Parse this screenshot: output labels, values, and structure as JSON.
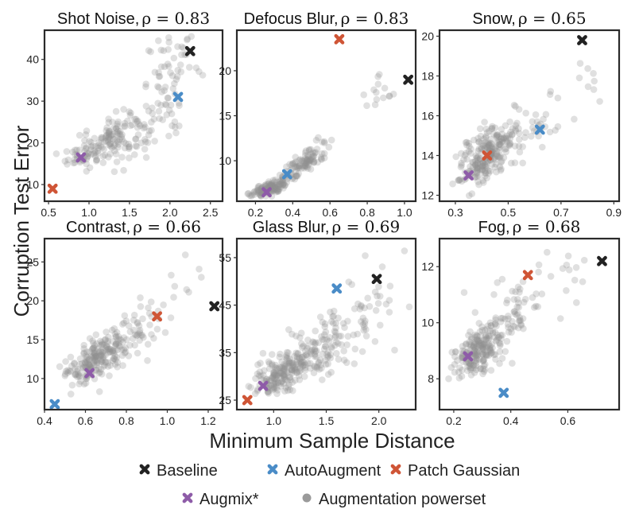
{
  "figure": {
    "xlabel": "Minimum Sample Distance",
    "ylabel": "Corruption Test Error"
  },
  "colors": {
    "baseline": "#222222",
    "autoaugment": "#4a8cc7",
    "patch_gaussian": "#cf5536",
    "augmix": "#8e5ca8",
    "powerset": "#8f8f8f"
  },
  "legend": [
    {
      "key": "baseline",
      "label": "Baseline",
      "marker": "cross"
    },
    {
      "key": "autoaugment",
      "label": "AutoAugment",
      "marker": "cross"
    },
    {
      "key": "patch_gaussian",
      "label": "Patch Gaussian",
      "marker": "cross"
    },
    {
      "key": "augmix",
      "label": "Augmix*",
      "marker": "cross"
    },
    {
      "key": "powerset",
      "label": "Augmentation powerset",
      "marker": "dot"
    }
  ],
  "chart_data": [
    {
      "type": "scatter",
      "title": "Shot Noise,",
      "rho": "ρ = 0.83",
      "xlim": [
        0.45,
        2.65
      ],
      "ylim": [
        6,
        47
      ],
      "xticks": [
        0.5,
        1.0,
        1.5,
        2.0,
        2.5
      ],
      "xtick_labels": [
        "0.5",
        "1.0",
        "1.5",
        "2.0",
        "2.5"
      ],
      "yticks": [
        10,
        20,
        30,
        40
      ],
      "ytick_labels": [
        "10",
        "20",
        "30",
        "40"
      ],
      "powerset_cluster": [
        {
          "cx": 1.3,
          "cy": 21,
          "sx": 0.28,
          "sy": 3.5,
          "n": 160,
          "corr": 0.6
        },
        {
          "cx": 2.05,
          "cy": 36,
          "sx": 0.17,
          "sy": 5.5,
          "n": 65,
          "corr": 0.2
        },
        {
          "cx": 0.95,
          "cy": 17,
          "sx": 0.12,
          "sy": 1.8,
          "n": 25,
          "corr": 0.3
        }
      ],
      "points": {
        "baseline": [
          2.25,
          42
        ],
        "autoaugment": [
          2.1,
          31
        ],
        "patch_gaussian": [
          0.55,
          9
        ],
        "augmix": [
          0.9,
          16.5
        ]
      }
    },
    {
      "type": "scatter",
      "title": "Defocus Blur,",
      "rho": "ρ = 0.83",
      "xlim": [
        0.1,
        1.06
      ],
      "ylim": [
        5.5,
        24.5
      ],
      "xticks": [
        0.2,
        0.4,
        0.6,
        0.8,
        1.0
      ],
      "xtick_labels": [
        "0.2",
        "0.4",
        "0.6",
        "0.8",
        "1.0"
      ],
      "yticks": [
        10,
        15,
        20
      ],
      "ytick_labels": [
        "10",
        "15",
        "20"
      ],
      "powerset_cluster": [
        {
          "cx": 0.27,
          "cy": 6.9,
          "sx": 0.05,
          "sy": 0.45,
          "n": 130,
          "corr": 0.6
        },
        {
          "cx": 0.45,
          "cy": 9.6,
          "sx": 0.07,
          "sy": 1.2,
          "n": 110,
          "corr": 0.85
        },
        {
          "cx": 0.85,
          "cy": 18,
          "sx": 0.06,
          "sy": 1.8,
          "n": 14,
          "corr": 0.3
        }
      ],
      "points": {
        "baseline": [
          1.02,
          19
        ],
        "autoaugment": [
          0.37,
          8.5
        ],
        "patch_gaussian": [
          0.65,
          23.5
        ],
        "augmix": [
          0.26,
          6.5
        ]
      }
    },
    {
      "type": "scatter",
      "title": "Snow,",
      "rho": "ρ = 0.65",
      "xlim": [
        0.24,
        0.92
      ],
      "ylim": [
        11.7,
        20.3
      ],
      "xticks": [
        0.3,
        0.5,
        0.7,
        0.9
      ],
      "xtick_labels": [
        "0.3",
        "0.5",
        "0.7",
        "0.9"
      ],
      "yticks": [
        12,
        14,
        16,
        18,
        20
      ],
      "ytick_labels": [
        "12",
        "14",
        "16",
        "18",
        "20"
      ],
      "powerset_cluster": [
        {
          "cx": 0.42,
          "cy": 14.0,
          "sx": 0.055,
          "sy": 0.8,
          "n": 230,
          "corr": 0.55
        },
        {
          "cx": 0.6,
          "cy": 15.5,
          "sx": 0.07,
          "sy": 0.8,
          "n": 40,
          "corr": 0.4
        },
        {
          "cx": 0.8,
          "cy": 17.6,
          "sx": 0.05,
          "sy": 0.9,
          "n": 8,
          "corr": 0.4
        }
      ],
      "points": {
        "baseline": [
          0.78,
          19.8
        ],
        "autoaugment": [
          0.62,
          15.3
        ],
        "patch_gaussian": [
          0.42,
          14
        ],
        "augmix": [
          0.35,
          13
        ]
      }
    },
    {
      "type": "scatter",
      "title": "Contrast,",
      "rho": "ρ = 0.66",
      "xlim": [
        0.4,
        1.27
      ],
      "ylim": [
        6,
        28
      ],
      "xticks": [
        0.4,
        0.6,
        0.8,
        1.0,
        1.2
      ],
      "xtick_labels": [
        "0.4",
        "0.6",
        "0.8",
        "1.0",
        "1.2"
      ],
      "yticks": [
        10,
        15,
        20,
        25
      ],
      "ytick_labels": [
        "10",
        "15",
        "20",
        "25"
      ],
      "powerset_cluster": [
        {
          "cx": 0.66,
          "cy": 12.5,
          "sx": 0.08,
          "sy": 1.6,
          "n": 210,
          "corr": 0.6
        },
        {
          "cx": 0.85,
          "cy": 16.5,
          "sx": 0.09,
          "sy": 2.2,
          "n": 45,
          "corr": 0.4
        },
        {
          "cx": 1.1,
          "cy": 22,
          "sx": 0.06,
          "sy": 2.8,
          "n": 8,
          "corr": 0.2
        }
      ],
      "points": {
        "baseline": [
          1.23,
          19.3
        ],
        "autoaugment": [
          0.45,
          6.7
        ],
        "patch_gaussian": [
          0.95,
          18
        ],
        "augmix": [
          0.62,
          10.7
        ]
      }
    },
    {
      "type": "scatter",
      "title": "Glass Blur,",
      "rho": "ρ = 0.69",
      "xlim": [
        0.65,
        2.35
      ],
      "ylim": [
        23,
        59
      ],
      "xticks": [
        1.0,
        1.5,
        2.0
      ],
      "xtick_labels": [
        "1.0",
        "1.5",
        "2.0"
      ],
      "yticks": [
        25,
        35,
        45,
        55
      ],
      "ytick_labels": [
        "25",
        "35",
        "45",
        "55"
      ],
      "powerset_cluster": [
        {
          "cx": 1.1,
          "cy": 31,
          "sx": 0.15,
          "sy": 2.6,
          "n": 190,
          "corr": 0.5
        },
        {
          "cx": 1.5,
          "cy": 37,
          "sx": 0.22,
          "sy": 4.0,
          "n": 120,
          "corr": 0.5
        },
        {
          "cx": 2.0,
          "cy": 45,
          "sx": 0.15,
          "sy": 5.0,
          "n": 20,
          "corr": 0.3
        }
      ],
      "points": {
        "baseline": [
          1.98,
          50.5
        ],
        "autoaugment": [
          1.6,
          48.5
        ],
        "patch_gaussian": [
          0.75,
          25
        ],
        "augmix": [
          0.9,
          28
        ]
      }
    },
    {
      "type": "scatter",
      "title": "Fog,",
      "rho": "ρ = 0.68",
      "xlim": [
        0.15,
        0.78
      ],
      "ylim": [
        6.9,
        13
      ],
      "xticks": [
        0.2,
        0.4,
        0.6
      ],
      "xtick_labels": [
        "0.2",
        "0.4",
        "0.6"
      ],
      "yticks": [
        8,
        10,
        12
      ],
      "ytick_labels": [
        "8",
        "10",
        "12"
      ],
      "powerset_cluster": [
        {
          "cx": 0.27,
          "cy": 8.9,
          "sx": 0.04,
          "sy": 0.45,
          "n": 150,
          "corr": 0.5
        },
        {
          "cx": 0.37,
          "cy": 10.0,
          "sx": 0.06,
          "sy": 0.7,
          "n": 110,
          "corr": 0.6
        },
        {
          "cx": 0.58,
          "cy": 11.8,
          "sx": 0.06,
          "sy": 0.5,
          "n": 14,
          "corr": 0.4
        }
      ],
      "points": {
        "baseline": [
          0.72,
          12.2
        ],
        "autoaugment": [
          0.375,
          7.5
        ],
        "patch_gaussian": [
          0.46,
          11.7
        ],
        "augmix": [
          0.25,
          8.8
        ]
      }
    }
  ]
}
